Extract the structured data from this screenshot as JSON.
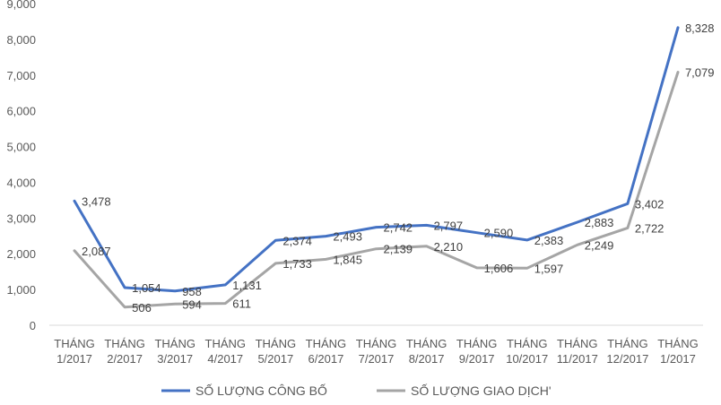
{
  "chart_data": {
    "type": "line",
    "categories": [
      [
        "THÁNG",
        "1/2017"
      ],
      [
        "THÁNG",
        "2/2017"
      ],
      [
        "THÁNG",
        "3/2017"
      ],
      [
        "THÁNG",
        "4/2017"
      ],
      [
        "THÁNG",
        "5/2017"
      ],
      [
        "THÁNG",
        "6/2017"
      ],
      [
        "THÁNG",
        "7/2017"
      ],
      [
        "THÁNG",
        "8/2017"
      ],
      [
        "THÁNG",
        "9/2017"
      ],
      [
        "THÁNG",
        "10/2017"
      ],
      [
        "THÁNG",
        "11/2017"
      ],
      [
        "THÁNG",
        "12/2017"
      ],
      [
        "THÁNG",
        "1/2017"
      ]
    ],
    "series": [
      {
        "name": "SỐ LƯỢNG CÔNG BỐ",
        "color": "#4472C4",
        "values": [
          3478,
          1054,
          958,
          1131,
          2374,
          2493,
          2742,
          2797,
          2590,
          2383,
          2883,
          3402,
          8328
        ],
        "labels": [
          "3,478",
          "1,054",
          "958",
          "1,131",
          "2,374",
          "2,493",
          "2,742",
          "2,797",
          "2,590",
          "2,383",
          "2,883",
          "3,402",
          "8,328"
        ]
      },
      {
        "name": "SỐ LƯỢNG GIAO DỊCH'",
        "color": "#A5A5A5",
        "values": [
          2087,
          506,
          594,
          611,
          1733,
          1845,
          2139,
          2210,
          1606,
          1597,
          2249,
          2722,
          7079
        ],
        "labels": [
          "2,087",
          "506",
          "594",
          "611",
          "1,733",
          "1,845",
          "2,139",
          "2,210",
          "1,606",
          "1,597",
          "2,249",
          "2,722",
          "7,079"
        ]
      }
    ],
    "yticks": [
      "0",
      "1,000",
      "2,000",
      "3,000",
      "4,000",
      "5,000",
      "6,000",
      "7,000",
      "8,000",
      "9,000"
    ],
    "ylim": [
      0,
      9000
    ],
    "grid": false,
    "legend_position": "bottom"
  }
}
